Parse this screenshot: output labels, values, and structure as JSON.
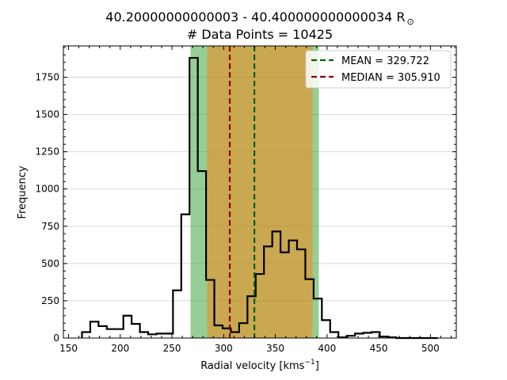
{
  "chart_data": {
    "type": "histogram",
    "title": "40.20000000000003 - 40.400000000000034 R",
    "title_symbol": "⊙",
    "subtitle": "# Data Points = 10425",
    "xlabel": "Radial velocity [kms",
    "xlabel_exponent": "−1",
    "xlabel_close": "]",
    "ylabel": "Frequency",
    "xlim": [
      145,
      525
    ],
    "ylim": [
      0,
      1960
    ],
    "x_ticks": [
      150,
      200,
      250,
      300,
      350,
      400,
      450,
      500
    ],
    "y_ticks": [
      0,
      250,
      500,
      750,
      1000,
      1250,
      1500,
      1750
    ],
    "grid": "horizontal",
    "legend_position": "top-right",
    "bins": {
      "edges": [
        163,
        171,
        179,
        187,
        195,
        203,
        211,
        219,
        227,
        235,
        243,
        251,
        259,
        267,
        275,
        283,
        291,
        299,
        307,
        315,
        323,
        331,
        339,
        347,
        355,
        363,
        371,
        379,
        387,
        395,
        403,
        411,
        419,
        427,
        435,
        443,
        451,
        459,
        467,
        475,
        483,
        491,
        499,
        507
      ],
      "counts": [
        40,
        110,
        80,
        60,
        60,
        150,
        95,
        40,
        25,
        30,
        30,
        320,
        830,
        1880,
        1120,
        390,
        85,
        65,
        40,
        100,
        280,
        430,
        615,
        715,
        575,
        655,
        595,
        395,
        265,
        120,
        40,
        5,
        15,
        30,
        35,
        40,
        10,
        5,
        0,
        0,
        0,
        0,
        0
      ]
    },
    "spans": [
      {
        "name": "green-span",
        "x0": 268,
        "x1": 392,
        "color": "#2ca02c",
        "opacity": 0.5
      },
      {
        "name": "orange-span",
        "x0": 284,
        "x1": 386,
        "color": "#ff7f0e",
        "opacity": 0.5
      }
    ],
    "lines": [
      {
        "name": "MEAN = 329.722",
        "x": 329.722,
        "color": "#006400"
      },
      {
        "name": "MEDIAN = 305.910",
        "x": 305.91,
        "color": "#8b0000"
      }
    ]
  }
}
